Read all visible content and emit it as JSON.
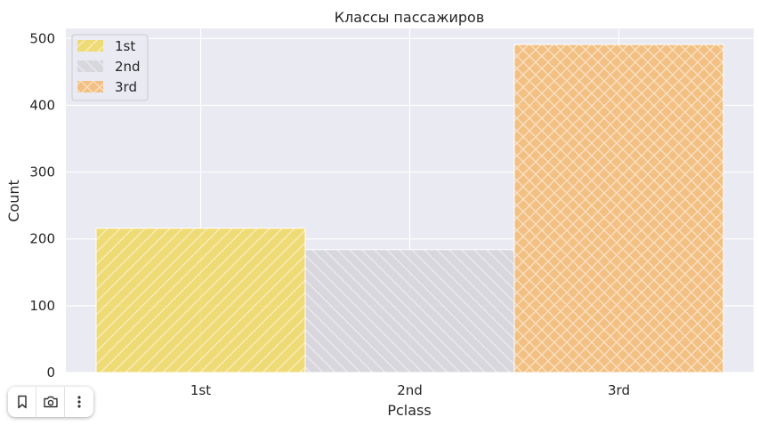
{
  "chart_data": {
    "type": "bar",
    "title": "Классы пассажиров",
    "xlabel": "Pclass",
    "ylabel": "Count",
    "categories": [
      "1st",
      "2nd",
      "3rd"
    ],
    "values": [
      216,
      184,
      491
    ],
    "ylim": [
      0,
      515
    ],
    "yticks": [
      0,
      100,
      200,
      300,
      400,
      500
    ],
    "grid": true,
    "legend_position": "top-left",
    "series": [
      {
        "name": "1st",
        "value": 216,
        "color": "#f0d860",
        "hatch": "diagonal"
      },
      {
        "name": "2nd",
        "value": 184,
        "color": "#d4d4d9",
        "hatch": "back-diagonal"
      },
      {
        "name": "3rd",
        "value": 491,
        "color": "#f4b870",
        "hatch": "cross"
      }
    ],
    "background": "#eaeaf2"
  },
  "toolbar": {
    "icons": [
      "bookmark-icon",
      "camera-icon",
      "more-vertical-icon"
    ]
  }
}
